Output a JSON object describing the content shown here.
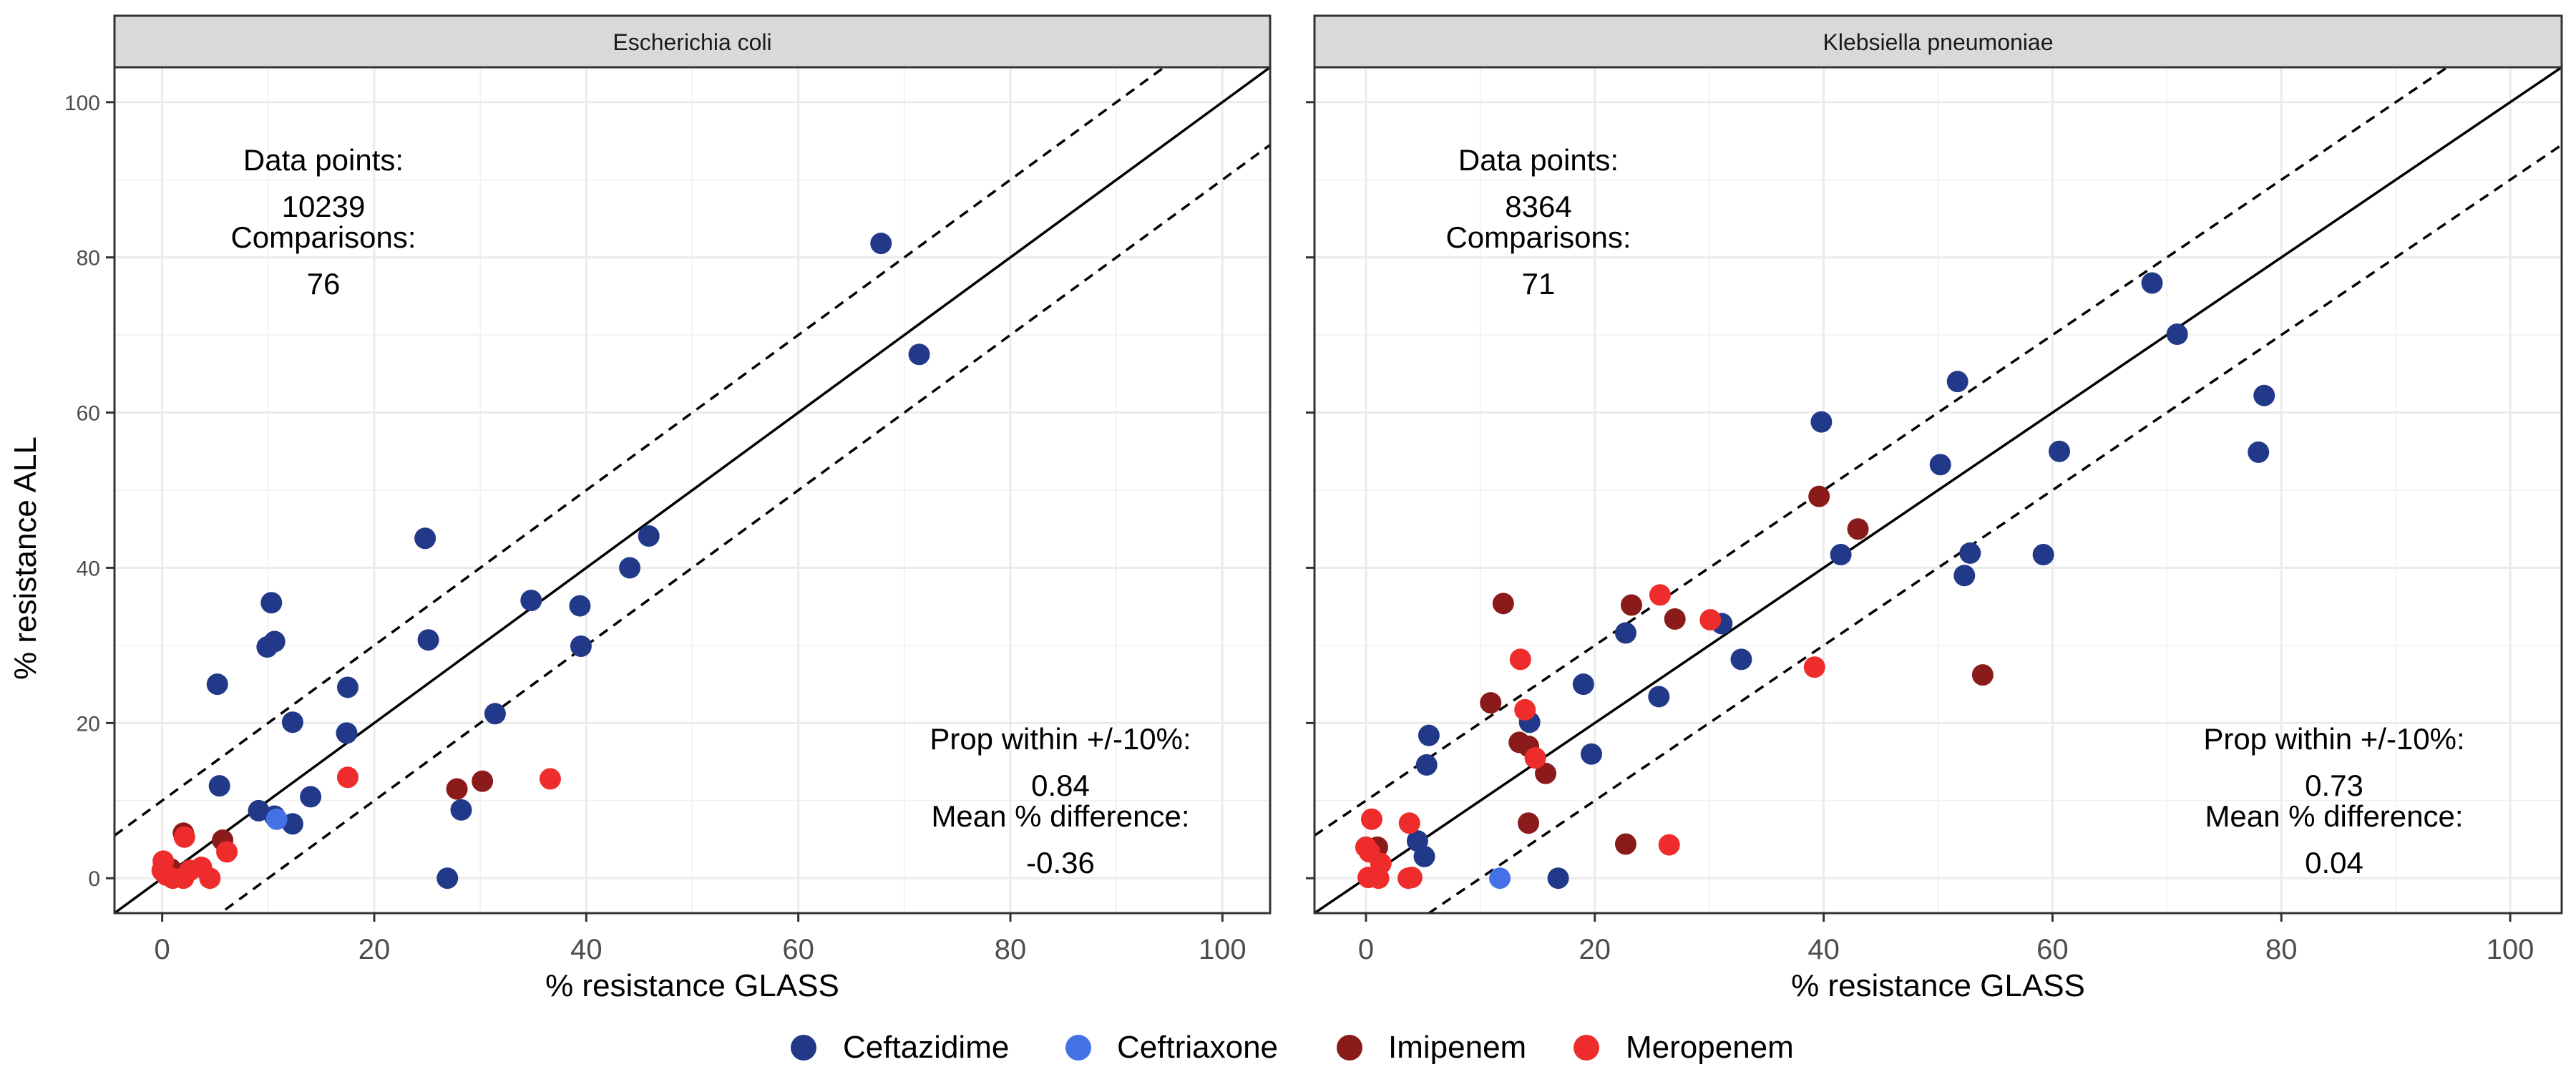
{
  "figure": {
    "ylabel": "% resistance ALL",
    "legend_position": "bottom",
    "colors": {
      "Ceftazidime": "#22398a",
      "Ceftriaxone": "#4472e6",
      "Imipenem": "#8b1a1a",
      "Meropenem": "#ee2c2c"
    }
  },
  "legend": {
    "items": [
      "Ceftazidime",
      "Ceftriaxone",
      "Imipenem",
      "Meropenem"
    ]
  },
  "panels": [
    {
      "strip": "Escherichia coli",
      "xlabel": "% resistance GLASS",
      "stats_top": {
        "label1": "Data points:",
        "value1": "10239",
        "label2": "Comparisons:",
        "value2": "76"
      },
      "stats_bottom": {
        "label1": "Prop within +/-10%:",
        "value1": "0.84",
        "label2": "Mean % difference:",
        "value2": "-0.36"
      }
    },
    {
      "strip": "Klebsiella pneumoniae",
      "xlabel": "% resistance GLASS",
      "stats_top": {
        "label1": "Data points:",
        "value1": "8364",
        "label2": "Comparisons:",
        "value2": "71"
      },
      "stats_bottom": {
        "label1": "Prop within +/-10%:",
        "value1": "0.73",
        "label2": "Mean % difference:",
        "value2": "0.04"
      }
    }
  ],
  "chart_data": [
    {
      "type": "scatter",
      "title": "Escherichia coli",
      "xlabel": "% resistance GLASS",
      "ylabel": "% resistance ALL",
      "xlim": [
        -4.5,
        104.5
      ],
      "ylim": [
        -4.5,
        104.5
      ],
      "x_ticks": [
        0,
        20,
        40,
        60,
        80,
        100
      ],
      "y_ticks": [
        0,
        20,
        40,
        60,
        80,
        100
      ],
      "grid": true,
      "reference_lines": [
        {
          "slope": 1,
          "intercept": 0,
          "style": "solid"
        },
        {
          "slope": 1,
          "intercept": 10,
          "style": "dashed"
        },
        {
          "slope": 1,
          "intercept": -10,
          "style": "dashed"
        }
      ],
      "series": [
        {
          "name": "Ceftazidime",
          "points": [
            [
              67.8,
              81.8
            ],
            [
              71.4,
              67.5
            ],
            [
              24.8,
              43.8
            ],
            [
              45.9,
              44.1
            ],
            [
              44.1,
              40.0
            ],
            [
              10.3,
              35.5
            ],
            [
              34.8,
              35.8
            ],
            [
              39.4,
              35.1
            ],
            [
              9.9,
              29.8
            ],
            [
              10.6,
              30.5
            ],
            [
              25.1,
              30.7
            ],
            [
              39.5,
              29.9
            ],
            [
              5.2,
              25.0
            ],
            [
              17.5,
              24.6
            ],
            [
              31.4,
              21.2
            ],
            [
              12.3,
              20.1
            ],
            [
              17.4,
              18.7
            ],
            [
              5.4,
              11.9
            ],
            [
              14.0,
              10.5
            ],
            [
              28.2,
              8.8
            ],
            [
              9.1,
              8.7
            ],
            [
              10.6,
              8.0
            ],
            [
              12.3,
              7.0
            ],
            [
              26.9,
              0.0
            ]
          ]
        },
        {
          "name": "Ceftriaxone",
          "points": [
            [
              10.8,
              7.6
            ],
            [
              0.2,
              0.7
            ]
          ]
        },
        {
          "name": "Imipenem",
          "points": [
            [
              27.8,
              11.5
            ],
            [
              30.2,
              12.5
            ],
            [
              5.7,
              4.9
            ],
            [
              2.0,
              5.8
            ],
            [
              0.8,
              1.2
            ],
            [
              1.5,
              0.5
            ]
          ]
        },
        {
          "name": "Meropenem",
          "points": [
            [
              17.5,
              13.0
            ],
            [
              36.6,
              12.8
            ],
            [
              6.1,
              3.4
            ],
            [
              2.1,
              5.3
            ],
            [
              3.7,
              1.4
            ],
            [
              0.1,
              2.2
            ],
            [
              0.4,
              0.4
            ],
            [
              1.0,
              0.0
            ],
            [
              4.5,
              0.0
            ],
            [
              2.6,
              1.0
            ],
            [
              2.0,
              0.0
            ],
            [
              0.0,
              1.0
            ]
          ]
        }
      ]
    },
    {
      "type": "scatter",
      "title": "Klebsiella pneumoniae",
      "xlabel": "% resistance GLASS",
      "ylabel": "% resistance ALL",
      "xlim": [
        -4.5,
        104.5
      ],
      "ylim": [
        -4.5,
        104.5
      ],
      "x_ticks": [
        0,
        20,
        40,
        60,
        80,
        100
      ],
      "y_ticks": [
        0,
        20,
        40,
        60,
        80,
        100
      ],
      "grid": true,
      "reference_lines": [
        {
          "slope": 1,
          "intercept": 0,
          "style": "solid"
        },
        {
          "slope": 1,
          "intercept": 10,
          "style": "dashed"
        },
        {
          "slope": 1,
          "intercept": -10,
          "style": "dashed"
        }
      ],
      "series": [
        {
          "name": "Ceftazidime",
          "points": [
            [
              68.7,
              76.7
            ],
            [
              70.9,
              70.1
            ],
            [
              51.7,
              64.0
            ],
            [
              78.5,
              62.2
            ],
            [
              39.8,
              58.8
            ],
            [
              60.6,
              55.0
            ],
            [
              78.0,
              54.9
            ],
            [
              50.2,
              53.3
            ],
            [
              41.5,
              41.7
            ],
            [
              52.8,
              41.9
            ],
            [
              59.2,
              41.7
            ],
            [
              52.3,
              39.0
            ],
            [
              22.7,
              31.6
            ],
            [
              31.1,
              32.8
            ],
            [
              32.8,
              28.2
            ],
            [
              19.0,
              25.0
            ],
            [
              25.6,
              23.4
            ],
            [
              14.3,
              20.1
            ],
            [
              5.5,
              18.4
            ],
            [
              5.3,
              14.6
            ],
            [
              19.7,
              16.0
            ],
            [
              4.5,
              4.8
            ],
            [
              5.1,
              2.8
            ],
            [
              16.8,
              0.0
            ]
          ]
        },
        {
          "name": "Ceftriaxone",
          "points": [
            [
              11.7,
              0.0
            ]
          ]
        },
        {
          "name": "Imipenem",
          "points": [
            [
              39.6,
              49.2
            ],
            [
              43.0,
              45.0
            ],
            [
              12.0,
              35.4
            ],
            [
              23.2,
              35.2
            ],
            [
              27.0,
              33.4
            ],
            [
              53.9,
              26.2
            ],
            [
              10.9,
              22.6
            ],
            [
              13.4,
              17.5
            ],
            [
              14.2,
              17.0
            ],
            [
              15.7,
              13.5
            ],
            [
              14.2,
              7.1
            ],
            [
              22.7,
              4.4
            ],
            [
              1.0,
              4.0
            ]
          ]
        },
        {
          "name": "Meropenem",
          "points": [
            [
              25.7,
              36.5
            ],
            [
              30.1,
              33.3
            ],
            [
              13.5,
              28.2
            ],
            [
              39.2,
              27.2
            ],
            [
              13.9,
              21.7
            ],
            [
              14.8,
              15.5
            ],
            [
              26.5,
              4.3
            ],
            [
              0.5,
              7.6
            ],
            [
              3.8,
              7.1
            ],
            [
              0.3,
              3.4
            ],
            [
              1.3,
              1.9
            ],
            [
              0.2,
              0.1
            ],
            [
              3.7,
              0.0
            ],
            [
              4.0,
              0.1
            ],
            [
              1.1,
              0.0
            ],
            [
              0.0,
              4.0
            ]
          ]
        }
      ]
    }
  ]
}
